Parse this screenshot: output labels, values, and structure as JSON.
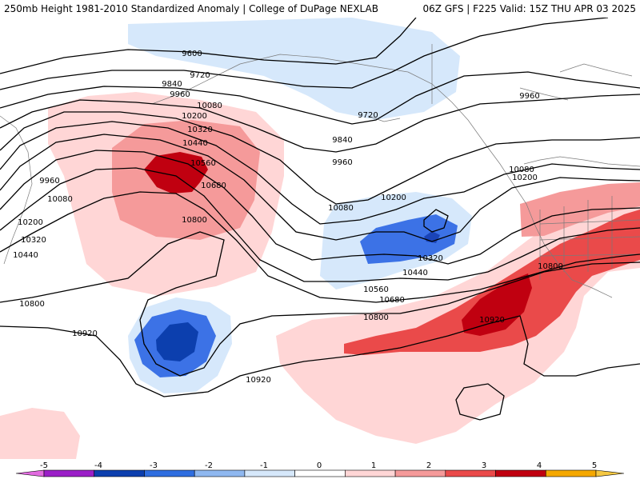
{
  "header": {
    "left_title": "250mb Height 1981-2010 Standardized Anomaly | College of DuPage NEXLAB",
    "right_title": "06Z GFS | F225 Valid: 15Z THU APR 03 2025"
  },
  "contour_labels": [
    "9600",
    "9720",
    "9840",
    "9960",
    "10080",
    "10200",
    "10320",
    "10440",
    "10560",
    "10680",
    "10800",
    "9720",
    "9840",
    "9960",
    "9960",
    "10080",
    "10200",
    "10080",
    "10200",
    "10320",
    "10440",
    "10560",
    "10680",
    "10800",
    "10800",
    "10920",
    "10920",
    "9960",
    "10080",
    "10200",
    "10320",
    "10440",
    "10800",
    "10920"
  ],
  "colorbar": {
    "ticks": [
      "-5",
      "-4",
      "-3",
      "-2",
      "-1",
      "0",
      "1",
      "2",
      "3",
      "4",
      "5"
    ],
    "colors": [
      "#e26be0",
      "#9b1fc8",
      "#0c3fae",
      "#2f6ee0",
      "#8fb8f0",
      "#d6e8fb",
      "#ffffff",
      "#ffd6d6",
      "#f59a9a",
      "#ea4a4a",
      "#c00010",
      "#f5a800",
      "#f5c842"
    ]
  }
}
